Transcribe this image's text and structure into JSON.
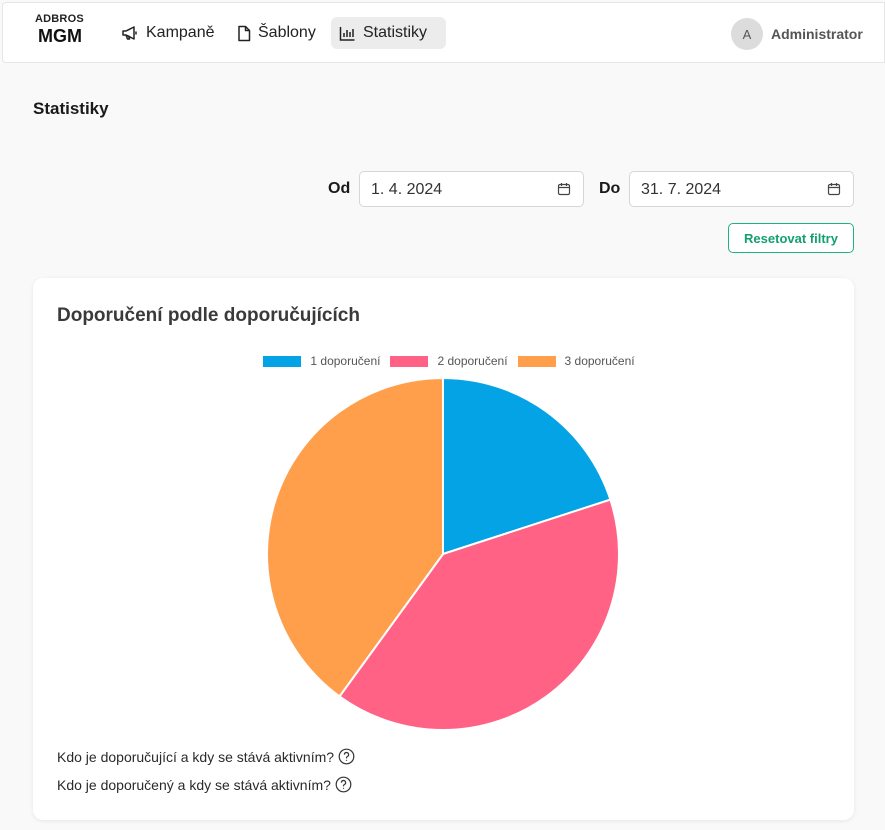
{
  "app": {
    "brand_top": "ADBROS",
    "brand_main": "MGM"
  },
  "nav": {
    "items": [
      {
        "label": "Kampaně",
        "icon": "megaphone-icon"
      },
      {
        "label": "Šablony",
        "icon": "document-icon"
      },
      {
        "label": "Statistiky",
        "icon": "bar-chart-icon",
        "active": true
      }
    ]
  },
  "user": {
    "avatar_letter": "A",
    "name": "Administrator"
  },
  "page": {
    "title": "Statistiky"
  },
  "filters": {
    "from_label": "Od",
    "from_value": "1. 4. 2024",
    "to_label": "Do",
    "to_value": "31. 7. 2024",
    "reset_label": "Resetovat filtry"
  },
  "card": {
    "title": "Doporučení podle doporučujících",
    "help": [
      "Kdo je doporučující a kdy se stává aktivním?",
      "Kdo je doporučený a kdy se stává aktivním?"
    ]
  },
  "chart_data": {
    "type": "pie",
    "title": "Doporučení podle doporučujících",
    "legend_position": "top",
    "series": [
      {
        "name": "1 doporučení",
        "value": 20,
        "color": "#03a3e5"
      },
      {
        "name": "2 doporučení",
        "value": 40,
        "color": "#ff6284"
      },
      {
        "name": "3 doporučení",
        "value": 40,
        "color": "#ff9f4b"
      }
    ]
  },
  "colors": {
    "accent": "#13a06e",
    "active_nav": "#ececec"
  }
}
